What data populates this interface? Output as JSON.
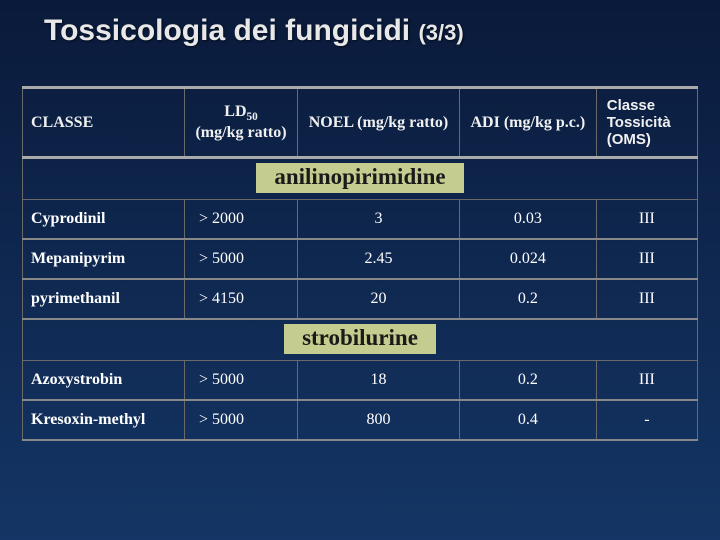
{
  "title_main": "Tossicologia dei fungicidi",
  "title_pager": "(3/3)",
  "headers": {
    "classe": "CLASSE",
    "ld50_html": "LD<span class=\"sub\">50</span><br>(mg/kg ratto)",
    "noel": "NOEL (mg/kg ratto)",
    "adi": "ADI (mg/kg p.c.)",
    "oms": "Classe Tossicità (OMS)"
  },
  "sections": [
    {
      "label": "anilinopirimidine",
      "rows": [
        {
          "name": "Cyprodinil",
          "ld50": "> 2000",
          "noel": "3",
          "adi": "0.03",
          "oms": "III"
        },
        {
          "name": "Mepanipyrim",
          "ld50": "> 5000",
          "noel": "2.45",
          "adi": "0.024",
          "oms": "III"
        },
        {
          "name": "pyrimethanil",
          "ld50": "> 4150",
          "noel": "20",
          "adi": "0.2",
          "oms": "III"
        }
      ]
    },
    {
      "label": "strobilurine",
      "rows": [
        {
          "name": "Azoxystrobin",
          "ld50": "> 5000",
          "noel": "18",
          "adi": "0.2",
          "oms": "III"
        },
        {
          "name": "Kresoxin-methyl",
          "ld50": "> 5000",
          "noel": "800",
          "adi": "0.4",
          "oms": "-"
        }
      ]
    }
  ]
}
